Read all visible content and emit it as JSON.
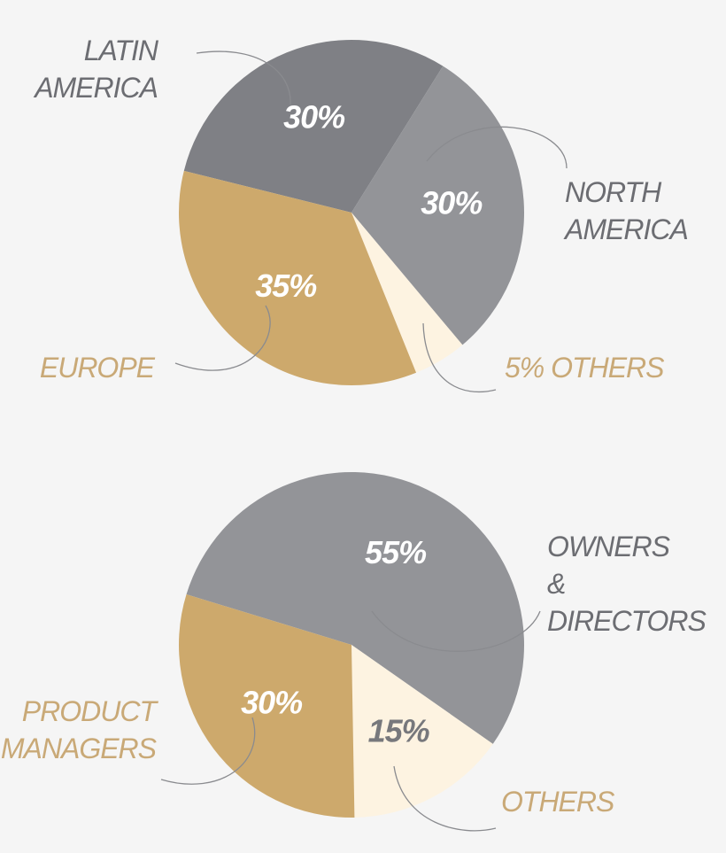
{
  "chart_data": [
    {
      "type": "pie",
      "categories": [
        "LATIN\nAMERICA",
        "NORTH\nAMERICA",
        "5% OTHERS",
        "EUROPE"
      ],
      "values": [
        30,
        30,
        5,
        35
      ],
      "value_labels": [
        "30%",
        "30%",
        null,
        "35%"
      ],
      "colors": [
        "#7f8085",
        "#939498",
        "#fdf3e1",
        "#cda96c"
      ],
      "label_colors": [
        "#ffffff",
        "#ffffff",
        "#ffffff",
        "#ffffff"
      ],
      "category_colors": [
        "#6c6d72",
        "#6c6d72",
        "#c9a977",
        "#c9a977"
      ]
    },
    {
      "type": "pie",
      "categories": [
        "OWNERS\n& DIRECTORS",
        "OTHERS",
        "PRODUCT\nMANAGERS"
      ],
      "values": [
        55,
        15,
        30
      ],
      "value_labels": [
        "55%",
        "15%",
        "30%"
      ],
      "colors": [
        "#939498",
        "#fdf3e1",
        "#cda96c"
      ],
      "label_colors": [
        "#ffffff",
        "#77787c",
        "#ffffff"
      ],
      "category_colors": [
        "#6c6d72",
        "#c9a977",
        "#c9a977"
      ]
    }
  ]
}
